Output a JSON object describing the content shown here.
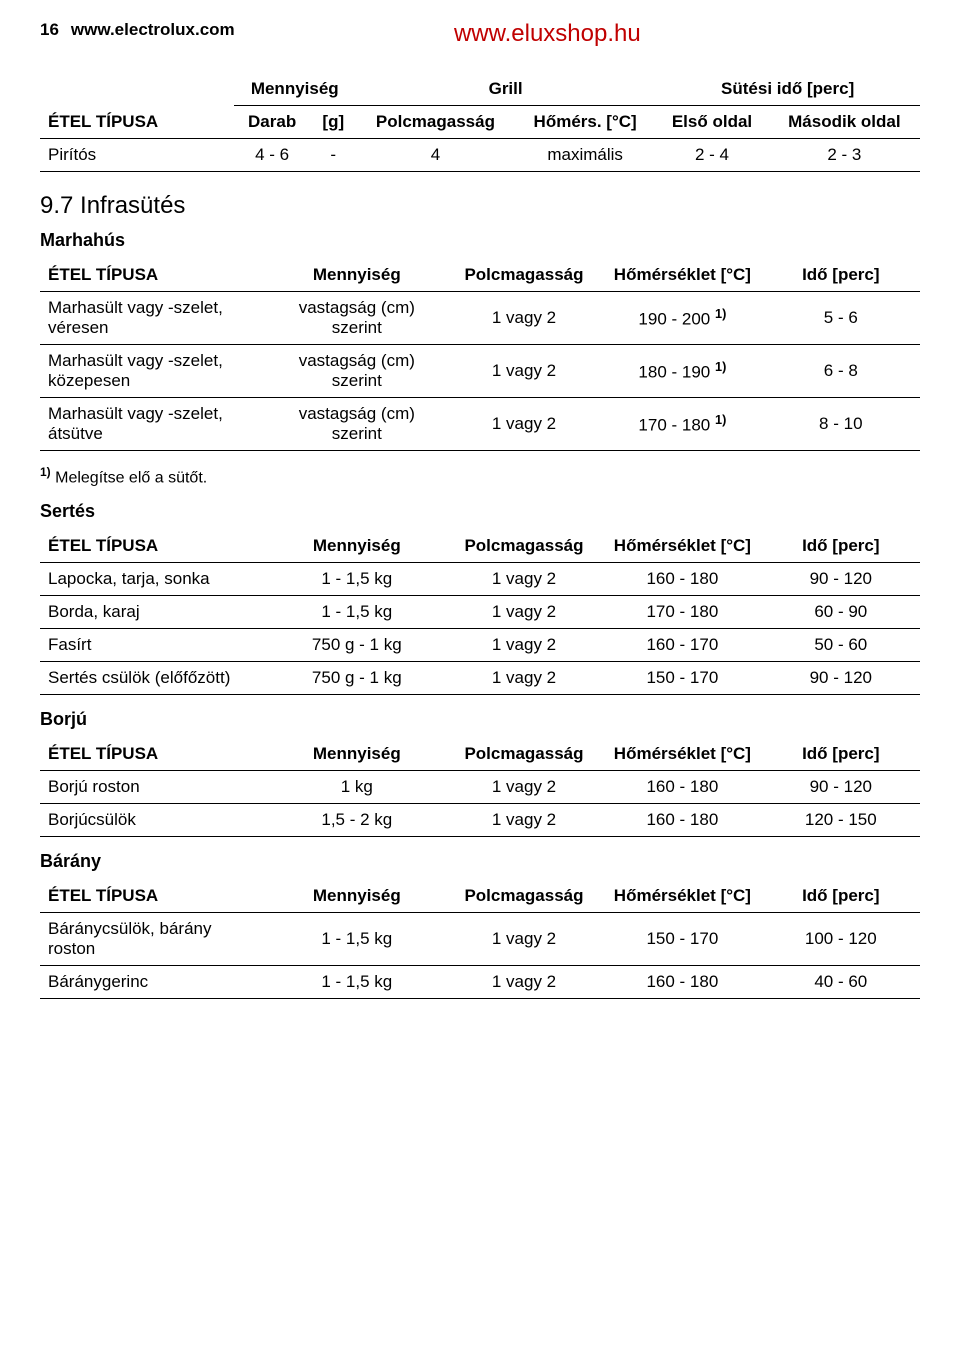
{
  "header": {
    "page_number": "16",
    "site": "www.electrolux.com",
    "top_link": "www.eluxshop.hu"
  },
  "table1": {
    "headers": {
      "food": "ÉTEL TÍPUSA",
      "qty_group": "Mennyiség",
      "qty_a": "Darab",
      "qty_b": "[g]",
      "grill": "Grill",
      "shelf": "Polcmagasság",
      "temp": "Hőmérs. [°C]",
      "time_group": "Sütési idő [perc]",
      "time_a": "Első oldal",
      "time_b": "Második oldal"
    },
    "rows": [
      {
        "food": "Pirítós",
        "darab": "4 - 6",
        "g": "-",
        "shelf": "4",
        "temp": "maximális",
        "t1": "2 - 4",
        "t2": "2 - 3"
      }
    ]
  },
  "section2": {
    "title": "9.7 Infrasütés",
    "sub1": "Marhahús",
    "headers": {
      "food": "ÉTEL TÍPUSA",
      "qty": "Mennyiség",
      "shelf": "Polcmagasság",
      "temp": "Hőmérséklet [°C]",
      "time": "Idő [perc]"
    },
    "rows": [
      {
        "food": "Marhasült vagy -szelet, véresen",
        "qty": "vastagság (cm) szerint",
        "shelf": "1 vagy 2",
        "temp": "190 - 200 ",
        "sup": "1)",
        "time": "5 - 6"
      },
      {
        "food": "Marhasült vagy -szelet, közepesen",
        "qty": "vastagság (cm) szerint",
        "shelf": "1 vagy 2",
        "temp": "180 - 190 ",
        "sup": "1)",
        "time": "6 - 8"
      },
      {
        "food": "Marhasült vagy -szelet, átsütve",
        "qty": "vastagság (cm) szerint",
        "shelf": "1 vagy 2",
        "temp": "170 - 180 ",
        "sup": "1)",
        "time": "8 - 10"
      }
    ],
    "footnote_sup": "1)",
    "footnote": " Melegítse elő a sütőt."
  },
  "section3": {
    "sub": "Sertés",
    "headers": {
      "food": "ÉTEL TÍPUSA",
      "qty": "Mennyiség",
      "shelf": "Polcmagasság",
      "temp": "Hőmérséklet [°C]",
      "time": "Idő [perc]"
    },
    "rows": [
      {
        "food": "Lapocka, tarja, sonka",
        "qty": "1 - 1,5 kg",
        "shelf": "1 vagy 2",
        "temp": "160 - 180",
        "time": "90 - 120"
      },
      {
        "food": "Borda, karaj",
        "qty": "1 - 1,5 kg",
        "shelf": "1 vagy 2",
        "temp": "170 - 180",
        "time": "60 - 90"
      },
      {
        "food": "Fasírt",
        "qty": "750 g - 1 kg",
        "shelf": "1 vagy 2",
        "temp": "160 - 170",
        "time": "50 - 60"
      },
      {
        "food": "Sertés csülök (előfőzött)",
        "qty": "750 g - 1 kg",
        "shelf": "1 vagy 2",
        "temp": "150 - 170",
        "time": "90 - 120"
      }
    ]
  },
  "section4": {
    "sub": "Borjú",
    "headers": {
      "food": "ÉTEL TÍPUSA",
      "qty": "Mennyiség",
      "shelf": "Polcmagasság",
      "temp": "Hőmérséklet [°C]",
      "time": "Idő [perc]"
    },
    "rows": [
      {
        "food": "Borjú roston",
        "qty": "1 kg",
        "shelf": "1 vagy 2",
        "temp": "160 - 180",
        "time": "90 - 120"
      },
      {
        "food": "Borjúcsülök",
        "qty": "1,5 - 2 kg",
        "shelf": "1 vagy 2",
        "temp": "160 - 180",
        "time": "120 - 150"
      }
    ]
  },
  "section5": {
    "sub": "Bárány",
    "headers": {
      "food": "ÉTEL TÍPUSA",
      "qty": "Mennyiség",
      "shelf": "Polcmagasság",
      "temp": "Hőmérséklet [°C]",
      "time": "Idő [perc]"
    },
    "rows": [
      {
        "food": "Báránycsülök, bárány roston",
        "qty": "1 - 1,5 kg",
        "shelf": "1 vagy 2",
        "temp": "150 - 170",
        "time": "100 - 120"
      },
      {
        "food": "Báránygerinc",
        "qty": "1 - 1,5 kg",
        "shelf": "1 vagy 2",
        "temp": "160 - 180",
        "time": "40 - 60"
      }
    ]
  }
}
